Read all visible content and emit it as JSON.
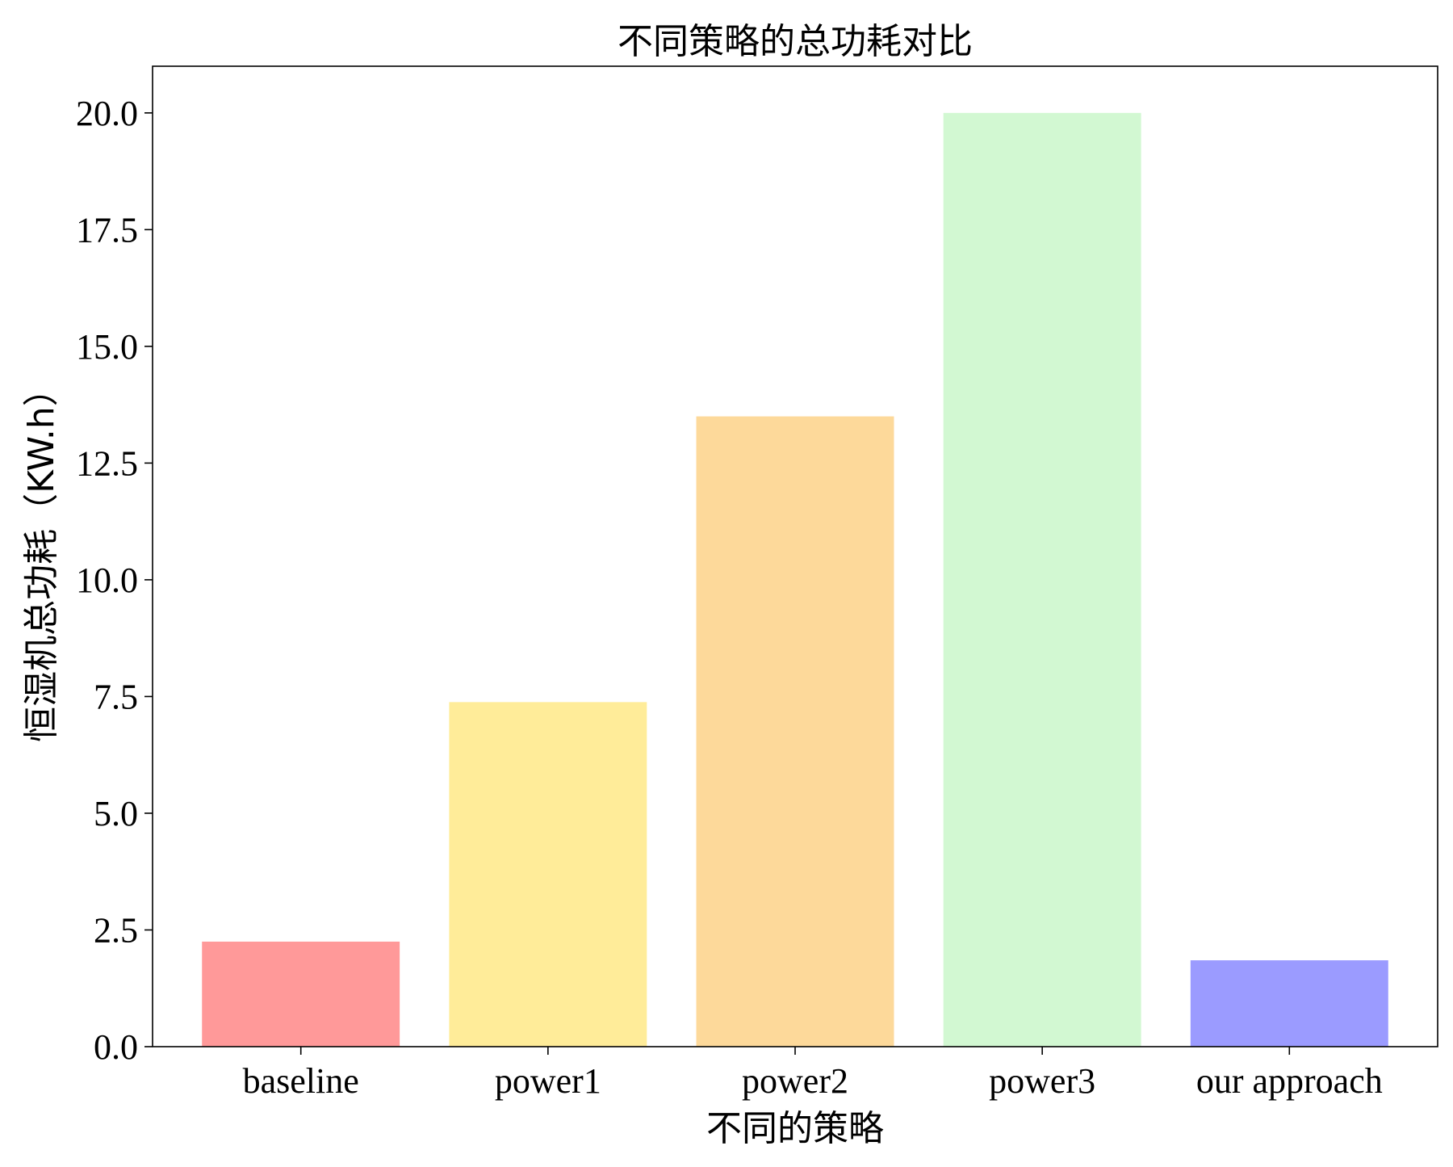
{
  "chart_data": {
    "type": "bar",
    "title": "不同策略的总功耗对比",
    "xlabel": "不同的策略",
    "ylabel": "恒湿机总功耗（KW.h）",
    "categories": [
      "baseline",
      "power1",
      "power2",
      "power3",
      "our approach"
    ],
    "values": [
      2.25,
      7.38,
      13.5,
      20.0,
      1.85
    ],
    "colors": [
      "#ff9999",
      "#ffec99",
      "#fdd99a",
      "#d2f8d2",
      "#9b9bff"
    ],
    "ylim": [
      0,
      21
    ],
    "yticks": [
      "0.0",
      "2.5",
      "5.0",
      "7.5",
      "10.0",
      "12.5",
      "15.0",
      "17.5",
      "20.0"
    ],
    "grid": false,
    "legend": "none"
  }
}
